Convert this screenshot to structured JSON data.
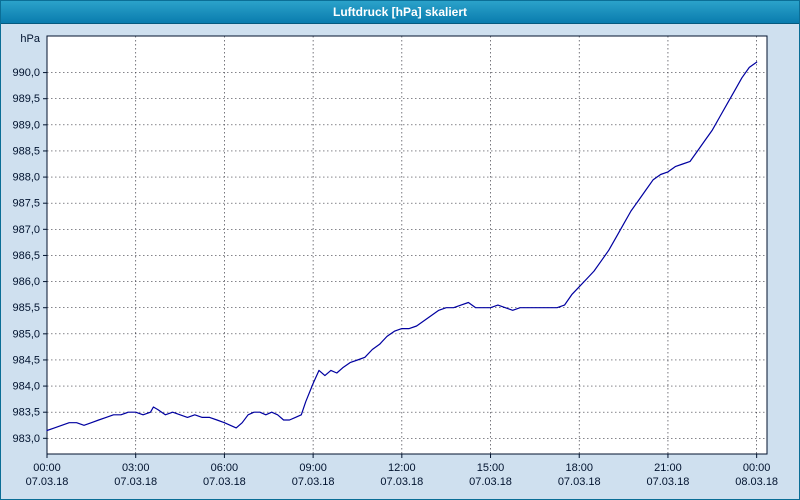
{
  "window": {
    "title": "Luftdruck [hPa] skaliert"
  },
  "colors": {
    "titlebar": "#0f82ad",
    "titlebar_text": "#ffffff",
    "background": "#cfe0ef",
    "plot_bg": "#ffffff",
    "grid": "#3c3c46",
    "axis_text": "#00122e",
    "line": "#0000a0",
    "window_border": "#0b6e96"
  },
  "chart_data": {
    "type": "line",
    "title": "Luftdruck [hPa] skaliert",
    "ylabel": "hPa",
    "xlabel": "",
    "grid": "dashed",
    "legend": "none",
    "xlim": [
      0,
      24.35
    ],
    "ylim": [
      982.7,
      990.7
    ],
    "yticks": [
      983.0,
      983.5,
      984.0,
      984.5,
      985.0,
      985.5,
      986.0,
      986.5,
      987.0,
      987.5,
      988.0,
      988.5,
      989.0,
      989.5,
      990.0
    ],
    "ytick_labels": [
      "983,0",
      "983,5",
      "984,0",
      "984,5",
      "985,0",
      "985,5",
      "986,0",
      "986,5",
      "987,0",
      "987,5",
      "988,0",
      "988,5",
      "989,0",
      "989,5",
      "990,0"
    ],
    "xticks": [
      0,
      3,
      6,
      9,
      12,
      15,
      18,
      21,
      24
    ],
    "xtick_labels": [
      {
        "time": "00:00",
        "date": "07.03.18"
      },
      {
        "time": "03:00",
        "date": "07.03.18"
      },
      {
        "time": "06:00",
        "date": "07.03.18"
      },
      {
        "time": "09:00",
        "date": "07.03.18"
      },
      {
        "time": "12:00",
        "date": "07.03.18"
      },
      {
        "time": "15:00",
        "date": "07.03.18"
      },
      {
        "time": "18:00",
        "date": "07.03.18"
      },
      {
        "time": "21:00",
        "date": "07.03.18"
      },
      {
        "time": "00:00",
        "date": "08.03.18"
      }
    ],
    "series": [
      {
        "name": "Luftdruck [hPa]",
        "color": "#0000a0",
        "points": [
          [
            0.0,
            983.15
          ],
          [
            0.25,
            983.2
          ],
          [
            0.5,
            983.25
          ],
          [
            0.75,
            983.3
          ],
          [
            1.0,
            983.3
          ],
          [
            1.25,
            983.25
          ],
          [
            1.5,
            983.3
          ],
          [
            1.75,
            983.35
          ],
          [
            2.0,
            983.4
          ],
          [
            2.25,
            983.45
          ],
          [
            2.5,
            983.45
          ],
          [
            2.75,
            983.5
          ],
          [
            3.0,
            983.5
          ],
          [
            3.25,
            983.45
          ],
          [
            3.5,
            983.5
          ],
          [
            3.6,
            983.6
          ],
          [
            3.75,
            983.55
          ],
          [
            4.0,
            983.45
          ],
          [
            4.25,
            983.5
          ],
          [
            4.5,
            983.45
          ],
          [
            4.75,
            983.4
          ],
          [
            5.0,
            983.45
          ],
          [
            5.25,
            983.4
          ],
          [
            5.5,
            983.4
          ],
          [
            5.75,
            983.35
          ],
          [
            6.0,
            983.3
          ],
          [
            6.2,
            983.25
          ],
          [
            6.4,
            983.2
          ],
          [
            6.6,
            983.3
          ],
          [
            6.8,
            983.45
          ],
          [
            7.0,
            983.5
          ],
          [
            7.2,
            983.5
          ],
          [
            7.4,
            983.45
          ],
          [
            7.6,
            983.5
          ],
          [
            7.8,
            983.45
          ],
          [
            8.0,
            983.35
          ],
          [
            8.2,
            983.35
          ],
          [
            8.4,
            983.4
          ],
          [
            8.6,
            983.45
          ],
          [
            8.75,
            983.7
          ],
          [
            9.0,
            984.05
          ],
          [
            9.2,
            984.3
          ],
          [
            9.4,
            984.2
          ],
          [
            9.6,
            984.3
          ],
          [
            9.8,
            984.25
          ],
          [
            10.0,
            984.35
          ],
          [
            10.25,
            984.45
          ],
          [
            10.5,
            984.5
          ],
          [
            10.75,
            984.55
          ],
          [
            11.0,
            984.7
          ],
          [
            11.25,
            984.8
          ],
          [
            11.5,
            984.95
          ],
          [
            11.75,
            985.05
          ],
          [
            12.0,
            985.1
          ],
          [
            12.25,
            985.1
          ],
          [
            12.5,
            985.15
          ],
          [
            12.75,
            985.25
          ],
          [
            13.0,
            985.35
          ],
          [
            13.25,
            985.45
          ],
          [
            13.5,
            985.5
          ],
          [
            13.75,
            985.5
          ],
          [
            14.0,
            985.55
          ],
          [
            14.25,
            985.6
          ],
          [
            14.5,
            985.5
          ],
          [
            14.75,
            985.5
          ],
          [
            15.0,
            985.5
          ],
          [
            15.25,
            985.55
          ],
          [
            15.5,
            985.5
          ],
          [
            15.75,
            985.45
          ],
          [
            16.0,
            985.5
          ],
          [
            16.25,
            985.5
          ],
          [
            16.5,
            985.5
          ],
          [
            16.75,
            985.5
          ],
          [
            17.0,
            985.5
          ],
          [
            17.25,
            985.5
          ],
          [
            17.5,
            985.55
          ],
          [
            17.75,
            985.75
          ],
          [
            18.0,
            985.9
          ],
          [
            18.25,
            986.05
          ],
          [
            18.5,
            986.2
          ],
          [
            18.75,
            986.4
          ],
          [
            19.0,
            986.6
          ],
          [
            19.25,
            986.85
          ],
          [
            19.5,
            987.1
          ],
          [
            19.75,
            987.35
          ],
          [
            20.0,
            987.55
          ],
          [
            20.25,
            987.75
          ],
          [
            20.5,
            987.95
          ],
          [
            20.75,
            988.05
          ],
          [
            21.0,
            988.1
          ],
          [
            21.25,
            988.2
          ],
          [
            21.5,
            988.25
          ],
          [
            21.75,
            988.3
          ],
          [
            22.0,
            988.5
          ],
          [
            22.25,
            988.7
          ],
          [
            22.5,
            988.9
          ],
          [
            22.75,
            989.15
          ],
          [
            23.0,
            989.4
          ],
          [
            23.25,
            989.65
          ],
          [
            23.5,
            989.9
          ],
          [
            23.75,
            990.1
          ],
          [
            24.0,
            990.2
          ]
        ]
      }
    ]
  }
}
